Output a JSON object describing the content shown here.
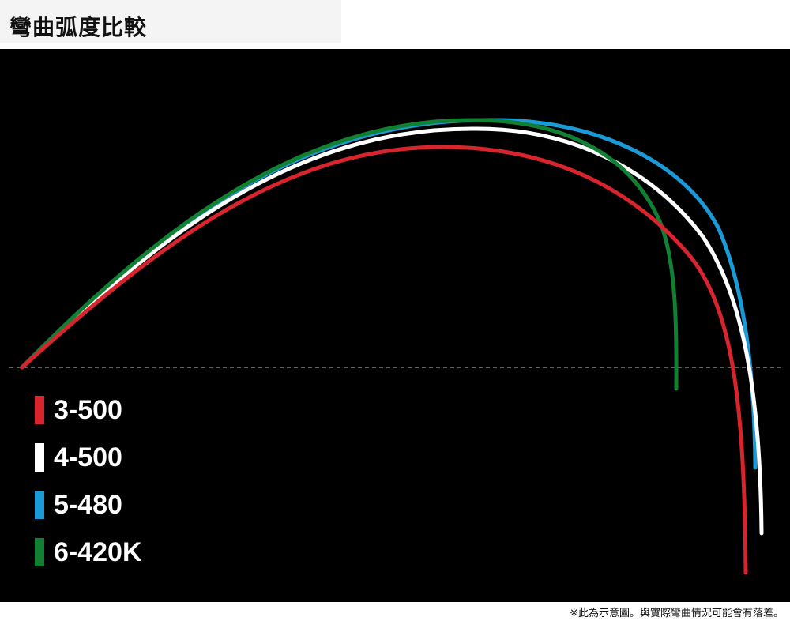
{
  "title": "彎曲弧度比較",
  "legend": [
    {
      "label": "3-500",
      "color": "#d7242d"
    },
    {
      "label": "4-500",
      "color": "#ffffff"
    },
    {
      "label": "5-480",
      "color": "#1a9ad7"
    },
    {
      "label": "6-420K",
      "color": "#118033"
    }
  ],
  "footnote": "※此為示意圖。與實際彎曲情況可能會有落差。"
}
